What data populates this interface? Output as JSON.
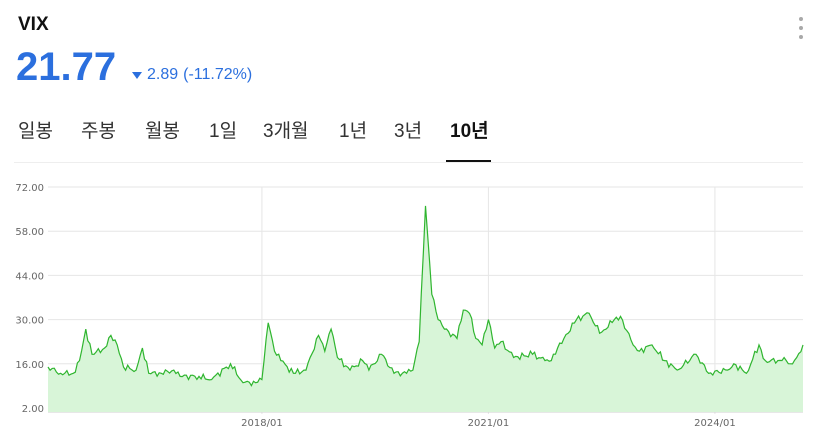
{
  "header": {
    "title": "VIX",
    "price": "21.77",
    "change_value": "2.89",
    "change_percent": "(-11.72%)",
    "direction": "down",
    "accent_color": "#2b6fde"
  },
  "tabs": [
    {
      "label": "일봉",
      "active": false
    },
    {
      "label": "주봉",
      "active": false
    },
    {
      "label": "월봉",
      "active": false
    },
    {
      "label": "1일",
      "active": false
    },
    {
      "label": "3개월",
      "active": false
    },
    {
      "label": "1년",
      "active": false
    },
    {
      "label": "3년",
      "active": false
    },
    {
      "label": "10년",
      "active": true
    }
  ],
  "chart_data": {
    "type": "area",
    "title": "",
    "ylim": [
      2.0,
      72.0
    ],
    "yticks": [
      "72.00",
      "58.00",
      "44.00",
      "30.00",
      "16.00",
      "2.00"
    ],
    "xticks": [
      "2018/01",
      "2021/01",
      "2024/01"
    ],
    "grid": true,
    "line_color": "#2fb52f",
    "fill_color": "#d8f5d8",
    "series": [
      {
        "x": [
          "2015/03",
          "2015/05",
          "2015/07",
          "2015/08",
          "2015/09",
          "2015/10",
          "2015/12",
          "2016/01",
          "2016/02",
          "2016/03",
          "2016/05",
          "2016/06",
          "2016/07",
          "2016/09",
          "2016/11",
          "2016/12",
          "2017/03",
          "2017/05",
          "2017/08",
          "2017/10",
          "2017/12",
          "2018/01",
          "2018/02",
          "2018/03",
          "2018/04",
          "2018/06",
          "2018/08",
          "2018/10",
          "2018/11",
          "2018/12",
          "2019/01",
          "2019/03",
          "2019/05",
          "2019/06",
          "2019/08",
          "2019/10",
          "2019/12",
          "2020/01",
          "2020/02",
          "2020/03",
          "2020/04",
          "2020/05",
          "2020/06",
          "2020/08",
          "2020/09",
          "2020/10",
          "2020/11",
          "2020/12",
          "2021/01",
          "2021/02",
          "2021/03",
          "2021/05",
          "2021/08",
          "2021/10",
          "2021/11",
          "2021/12",
          "2022/01",
          "2022/03",
          "2022/05",
          "2022/06",
          "2022/07",
          "2022/09",
          "2022/10",
          "2022/12",
          "2023/01",
          "2023/03",
          "2023/05",
          "2023/07",
          "2023/10",
          "2023/12",
          "2024/03",
          "2024/04",
          "2024/06",
          "2024/08",
          "2024/09",
          "2024/11",
          "2024/12",
          "2025/01",
          "2025/02",
          "2025/03"
        ],
        "values": [
          15,
          13,
          13,
          17,
          27,
          19,
          21,
          25,
          22,
          15,
          14,
          21,
          13,
          13,
          14,
          12,
          12,
          11,
          16,
          10,
          10,
          11,
          29,
          20,
          17,
          13,
          14,
          25,
          20,
          27,
          18,
          14,
          17,
          14,
          19,
          13,
          13,
          14,
          23,
          66,
          38,
          30,
          27,
          24,
          33,
          32,
          24,
          22,
          30,
          21,
          23,
          18,
          19,
          17,
          17,
          21,
          24,
          30,
          32,
          28,
          26,
          30,
          31,
          22,
          20,
          22,
          17,
          14,
          19,
          13,
          14,
          16,
          13,
          22,
          17,
          17,
          18,
          16,
          18,
          22
        ]
      }
    ]
  }
}
